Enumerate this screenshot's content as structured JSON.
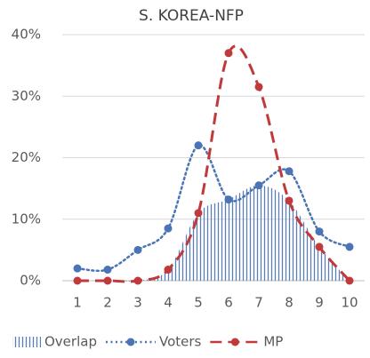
{
  "chart_data": {
    "type": "line",
    "title": "S. KOREA-NFP",
    "categories": [
      "1",
      "2",
      "3",
      "4",
      "5",
      "6",
      "7",
      "8",
      "9",
      "10"
    ],
    "series": [
      {
        "name": "Overlap",
        "color": "#5b7fb5",
        "style": "hatched-area",
        "values": [
          0,
          0,
          0,
          1.8,
          11,
          13.2,
          15.5,
          13,
          5.5,
          0
        ]
      },
      {
        "name": "Voters",
        "color": "#4a74b4",
        "style": "dotted",
        "values": [
          2,
          1.8,
          5,
          8.5,
          22,
          13.2,
          15.5,
          17.8,
          8,
          5.5
        ]
      },
      {
        "name": "MP",
        "color": "#c0393b",
        "style": "dashed",
        "values": [
          0,
          0,
          0,
          1.8,
          11,
          37,
          31.5,
          13,
          5.5,
          0
        ]
      }
    ],
    "ylim": [
      0,
      40
    ],
    "yticks": [
      {
        "value": 0,
        "label": "0%"
      },
      {
        "value": 10,
        "label": "10%"
      },
      {
        "value": 20,
        "label": "20%"
      },
      {
        "value": 30,
        "label": "30%"
      },
      {
        "value": 40,
        "label": "40%"
      }
    ],
    "grid": true,
    "smooth": true,
    "legend": "bottom"
  }
}
